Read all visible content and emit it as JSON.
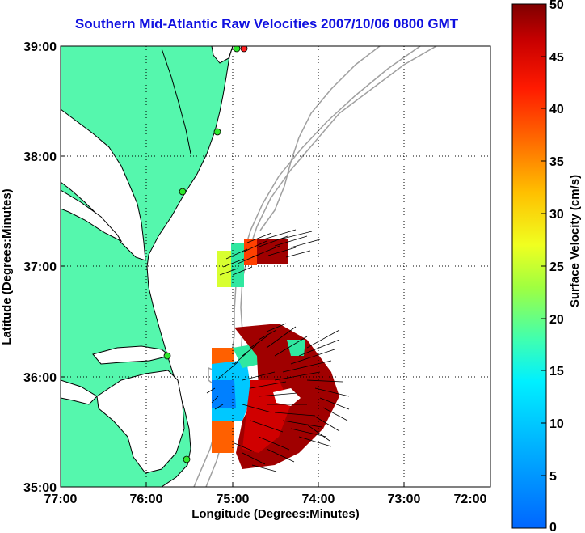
{
  "title": "Southern Mid-Atlantic Raw Velocities 2007/10/06 0800 GMT",
  "axes": {
    "xlabel": "Longitude (Degrees:Minutes)",
    "ylabel": "Latitude (Degrees:Minutes)",
    "x_ticks": [
      "77:00",
      "76:00",
      "75:00",
      "74:00",
      "73:00",
      "72:00"
    ],
    "y_ticks": [
      "39:00",
      "38:00",
      "37:00",
      "36:00",
      "35:00"
    ]
  },
  "colorbar": {
    "label": "Surface Velocity (cm/s)",
    "ticks": [
      "50",
      "45",
      "40",
      "35",
      "30",
      "25",
      "20",
      "15",
      "10",
      "5",
      "0"
    ],
    "min": 0,
    "max": 50
  },
  "colors": {
    "land": "#55f7ad",
    "coastline": "#000000",
    "bathymetry": "#a0a0a0",
    "grid": "#000000",
    "title": "#1010e0",
    "station": "#2ee82e",
    "station_alt": "#ff2020"
  }
}
